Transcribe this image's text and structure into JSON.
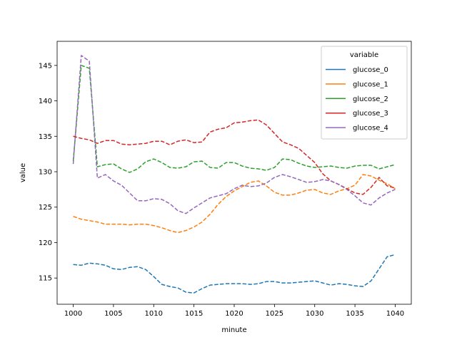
{
  "chart_data": {
    "type": "line",
    "title": "",
    "xlabel": "minute",
    "ylabel": "value",
    "xlim": [
      998,
      1042
    ],
    "ylim": [
      111.3,
      148.4
    ],
    "xticks": [
      1000,
      1005,
      1010,
      1015,
      1020,
      1025,
      1030,
      1035,
      1040
    ],
    "yticks": [
      115,
      120,
      125,
      130,
      135,
      140,
      145
    ],
    "grid": false,
    "legend": {
      "title": "variable",
      "placement": "top-right"
    },
    "x": [
      1000,
      1001,
      1002,
      1003,
      1004,
      1005,
      1006,
      1007,
      1008,
      1009,
      1010,
      1011,
      1012,
      1013,
      1014,
      1015,
      1016,
      1017,
      1018,
      1019,
      1020,
      1021,
      1022,
      1023,
      1024,
      1025,
      1026,
      1027,
      1028,
      1029,
      1030,
      1031,
      1032,
      1033,
      1034,
      1035,
      1036,
      1037,
      1038,
      1039,
      1040
    ],
    "series": [
      {
        "name": "glucose_0",
        "color": "#1f77b4",
        "values": [
          116.9,
          116.8,
          117.1,
          117.0,
          116.8,
          116.3,
          116.2,
          116.5,
          116.6,
          116.2,
          115.2,
          114.1,
          113.8,
          113.6,
          113.0,
          112.9,
          113.5,
          114.0,
          114.1,
          114.2,
          114.2,
          114.2,
          114.1,
          114.2,
          114.5,
          114.5,
          114.3,
          114.3,
          114.4,
          114.5,
          114.6,
          114.3,
          114.0,
          114.2,
          114.1,
          113.9,
          113.8,
          114.6,
          116.3,
          118.0,
          118.3
        ]
      },
      {
        "name": "glucose_1",
        "color": "#ff7f0e",
        "values": [
          123.7,
          123.3,
          123.1,
          122.9,
          122.6,
          122.6,
          122.6,
          122.5,
          122.6,
          122.6,
          122.4,
          122.1,
          121.7,
          121.4,
          121.7,
          122.2,
          122.9,
          124.0,
          125.4,
          126.5,
          127.3,
          127.9,
          128.5,
          128.7,
          128.0,
          127.1,
          126.7,
          126.7,
          127.0,
          127.4,
          127.5,
          127.0,
          126.8,
          127.3,
          127.6,
          128.1,
          129.6,
          129.4,
          128.8,
          128.3,
          127.6
        ]
      },
      {
        "name": "glucose_2",
        "color": "#2ca02c",
        "values": [
          131.5,
          145.0,
          144.6,
          130.7,
          131.0,
          131.1,
          130.4,
          129.9,
          130.4,
          131.4,
          131.8,
          131.3,
          130.6,
          130.5,
          130.7,
          131.4,
          131.5,
          130.6,
          130.5,
          131.3,
          131.3,
          130.8,
          130.5,
          130.4,
          130.2,
          130.6,
          131.8,
          131.7,
          131.2,
          130.8,
          130.6,
          130.7,
          130.8,
          130.6,
          130.5,
          130.8,
          130.9,
          130.9,
          130.4,
          130.7,
          131.0
        ]
      },
      {
        "name": "glucose_3",
        "color": "#d62728",
        "values": [
          135.0,
          134.7,
          134.5,
          134.0,
          134.4,
          134.4,
          133.9,
          133.8,
          133.9,
          134.0,
          134.3,
          134.3,
          133.8,
          134.3,
          134.5,
          134.1,
          134.2,
          135.6,
          136.0,
          136.2,
          136.9,
          137.0,
          137.2,
          137.3,
          136.6,
          135.4,
          134.2,
          133.8,
          133.3,
          132.3,
          131.3,
          129.7,
          128.7,
          128.2,
          127.6,
          127.0,
          126.8,
          127.8,
          129.2,
          128.0,
          127.7
        ]
      },
      {
        "name": "glucose_4",
        "color": "#9467bd",
        "values": [
          131.1,
          146.4,
          145.6,
          129.1,
          129.6,
          128.7,
          128.1,
          127.0,
          125.9,
          125.9,
          126.2,
          126.1,
          125.5,
          124.5,
          124.1,
          124.9,
          125.6,
          126.3,
          126.6,
          126.9,
          127.6,
          128.1,
          127.9,
          128.0,
          128.4,
          129.2,
          129.6,
          129.3,
          128.9,
          128.5,
          128.6,
          128.9,
          128.7,
          128.2,
          127.5,
          126.6,
          125.6,
          125.3,
          126.3,
          127.0,
          127.5
        ]
      }
    ]
  }
}
